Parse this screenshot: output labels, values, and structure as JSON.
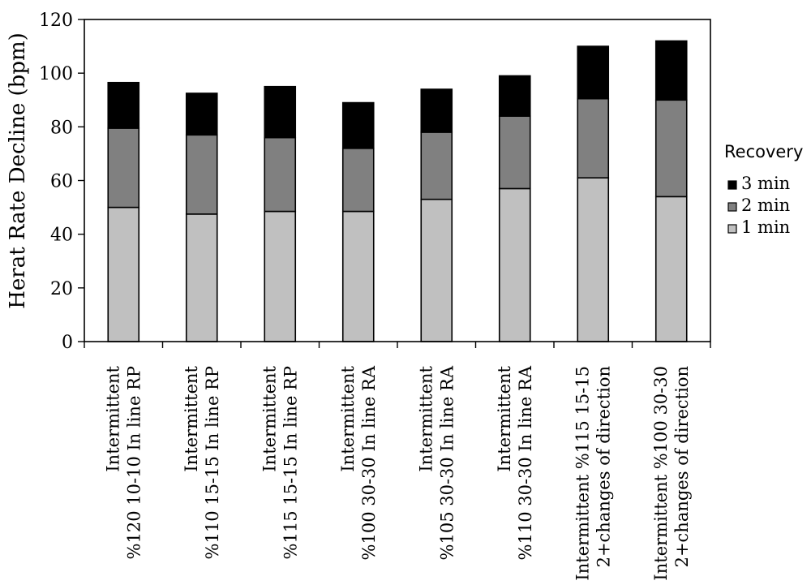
{
  "chart_data": {
    "type": "bar",
    "stacked": true,
    "title": "",
    "xlabel": "",
    "ylabel": "Herat Rate Decline  (bpm)",
    "ylim": [
      0,
      120
    ],
    "yticks": [
      0,
      20,
      40,
      60,
      80,
      100,
      120
    ],
    "grid": false,
    "legend_title": "Recovery",
    "legend_position": "right",
    "categories": [
      [
        "Intermittent",
        "%120 10-10 In line RP"
      ],
      [
        "Intermittent",
        "%110 15-15 In line RP"
      ],
      [
        "Intermittent",
        "%115 15-15 In line RP"
      ],
      [
        "Intermittent",
        "%100 30-30 In line RA"
      ],
      [
        "Intermittent",
        "%105 30-30 In line RA"
      ],
      [
        "Intermittent",
        "%110 30-30 In line RA"
      ],
      [
        "Intermittent %115 15-15",
        "2+changes of direction"
      ],
      [
        "Intermittent %100 30-30",
        "2+changes of direction"
      ]
    ],
    "series": [
      {
        "name": "1 min",
        "color": "#c0c0c0",
        "values": [
          50,
          47.5,
          48.5,
          48.5,
          53,
          57,
          61,
          54
        ]
      },
      {
        "name": "2 min",
        "color": "#808080",
        "values": [
          29.5,
          29.5,
          27.5,
          23.5,
          25,
          27,
          29.5,
          36
        ]
      },
      {
        "name": "3 min",
        "color": "#000000",
        "values": [
          17,
          15.5,
          19,
          17,
          16,
          15,
          19.5,
          22
        ]
      }
    ],
    "legend_order": [
      "3 min",
      "2 min",
      "1 min"
    ]
  }
}
